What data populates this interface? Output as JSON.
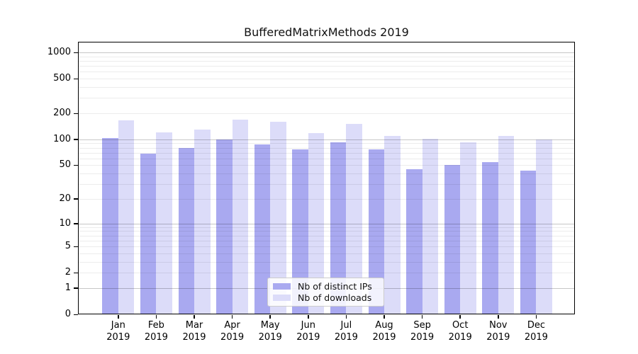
{
  "title": "BufferedMatrixMethods 2019",
  "legend": {
    "items": [
      {
        "label": "Nb of distinct IPs",
        "color": "#a9a9f0"
      },
      {
        "label": "Nb of downloads",
        "color": "#dcdcf9"
      }
    ]
  },
  "y_axis": {
    "tick_labels": [
      "0",
      "1",
      "2",
      "5",
      "10",
      "20",
      "50",
      "100",
      "200",
      "500",
      "1000"
    ]
  },
  "x_axis": {
    "year": "2019",
    "months": [
      "Jan",
      "Feb",
      "Mar",
      "Apr",
      "May",
      "Jun",
      "Jul",
      "Aug",
      "Sep",
      "Oct",
      "Nov",
      "Dec"
    ]
  },
  "colors": {
    "bar_distinct_ips": "#a9a9f0",
    "bar_downloads": "#dcdcf9",
    "grid_minor": "rgba(0,0,0,0.075)",
    "grid_major": "rgba(0,0,0,0.22)",
    "axis": "#000000"
  },
  "chart_data": {
    "type": "bar",
    "title": "BufferedMatrixMethods 2019",
    "categories": [
      "Jan 2019",
      "Feb 2019",
      "Mar 2019",
      "Apr 2019",
      "May 2019",
      "Jun 2019",
      "Jul 2019",
      "Aug 2019",
      "Sep 2019",
      "Oct 2019",
      "Nov 2019",
      "Dec 2019"
    ],
    "series": [
      {
        "name": "Nb of distinct IPs",
        "color": "#a9a9f0",
        "values": [
          104,
          68,
          80,
          99,
          88,
          76,
          93,
          77,
          45,
          50,
          54,
          43
        ]
      },
      {
        "name": "Nb of downloads",
        "color": "#dcdcf9",
        "values": [
          167,
          120,
          129,
          168,
          161,
          118,
          151,
          110,
          102,
          92,
          110,
          100
        ]
      }
    ],
    "xlabel": "",
    "ylabel": "",
    "y_scale": "log10(1+x)",
    "y_ticks": [
      0,
      1,
      2,
      5,
      10,
      20,
      50,
      100,
      200,
      500,
      1000
    ],
    "ylim": [
      0,
      1330
    ],
    "grid": "horizontal, major at powers of 10, minor at 2-9 multiples",
    "legend_position": "inside lower center"
  }
}
